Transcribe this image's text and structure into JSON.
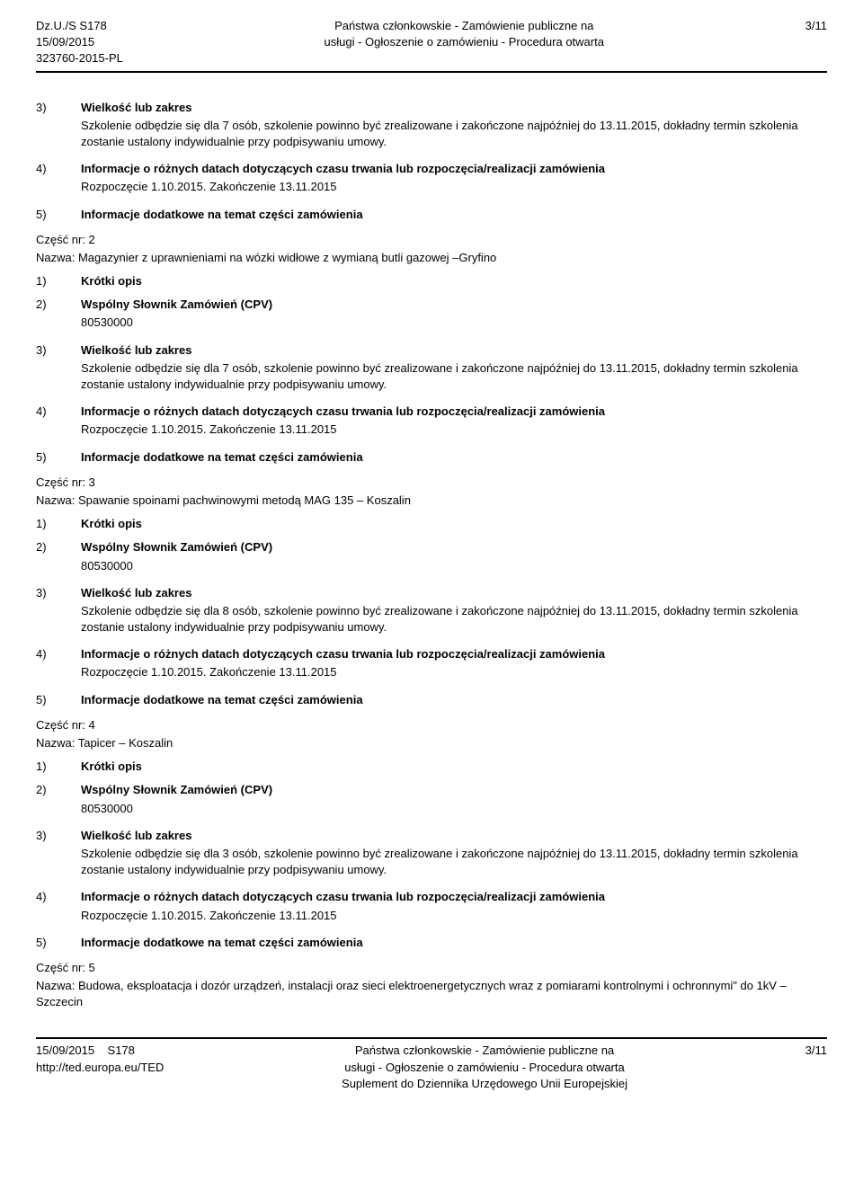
{
  "header": {
    "left_line1": "Dz.U./S S178",
    "left_line2": "15/09/2015",
    "left_line3": "323760-2015-PL",
    "center_line1": "Państwa członkowskie - Zamówienie publiczne na",
    "center_line2": "usługi - Ogłoszenie o zamówieniu - Procedura otwarta",
    "right": "3/11"
  },
  "sections": [
    {
      "rows": [
        {
          "num": "3)",
          "bold": true,
          "text": "Wielkość lub zakres"
        },
        {
          "num": "",
          "bold": false,
          "text": "Szkolenie odbędzie się dla 7 osób, szkolenie powinno być zrealizowane i zakończone najpóźniej do 13.11.2015, dokładny termin szkolenia zostanie ustalony indywidualnie przy podpisywaniu umowy."
        },
        {
          "num": "4)",
          "bold": true,
          "text": "Informacje o różnych datach dotyczących czasu trwania lub rozpoczęcia/realizacji zamówienia"
        },
        {
          "num": "",
          "bold": false,
          "text": "Rozpoczęcie 1.10.2015. Zakończenie 13.11.2015"
        },
        {
          "num": "5)",
          "bold": true,
          "text": "Informacje dodatkowe na temat części zamówienia"
        }
      ],
      "part": "Część nr: 2",
      "name": "Nazwa: Magazynier z uprawnieniami na wózki widłowe z wymianą butli gazowej –Gryfino"
    },
    {
      "rows": [
        {
          "num": "1)",
          "bold": true,
          "text": "Krótki opis"
        },
        {
          "num": "2)",
          "bold": true,
          "text": "Wspólny Słownik Zamówień (CPV)"
        },
        {
          "num": "",
          "bold": false,
          "text": "80530000"
        },
        {
          "num": "3)",
          "bold": true,
          "text": "Wielkość lub zakres"
        },
        {
          "num": "",
          "bold": false,
          "text": "Szkolenie odbędzie się dla 7 osób, szkolenie powinno być zrealizowane i zakończone najpóźniej do 13.11.2015, dokładny termin szkolenia zostanie ustalony indywidualnie przy podpisywaniu umowy."
        },
        {
          "num": "4)",
          "bold": true,
          "text": "Informacje o różnych datach dotyczących czasu trwania lub rozpoczęcia/realizacji zamówienia"
        },
        {
          "num": "",
          "bold": false,
          "text": "Rozpoczęcie 1.10.2015. Zakończenie 13.11.2015"
        },
        {
          "num": "5)",
          "bold": true,
          "text": "Informacje dodatkowe na temat części zamówienia"
        }
      ],
      "part": "Część nr: 3",
      "name": "Nazwa: Spawanie spoinami pachwinowymi metodą MAG 135 – Koszalin"
    },
    {
      "rows": [
        {
          "num": "1)",
          "bold": true,
          "text": "Krótki opis"
        },
        {
          "num": "2)",
          "bold": true,
          "text": "Wspólny Słownik Zamówień (CPV)"
        },
        {
          "num": "",
          "bold": false,
          "text": "80530000"
        },
        {
          "num": "3)",
          "bold": true,
          "text": "Wielkość lub zakres"
        },
        {
          "num": "",
          "bold": false,
          "text": "Szkolenie odbędzie się dla 8 osób, szkolenie powinno być zrealizowane i zakończone najpóźniej do 13.11.2015, dokładny termin szkolenia zostanie ustalony indywidualnie przy podpisywaniu umowy."
        },
        {
          "num": "4)",
          "bold": true,
          "text": "Informacje o różnych datach dotyczących czasu trwania lub rozpoczęcia/realizacji zamówienia"
        },
        {
          "num": "",
          "bold": false,
          "text": "Rozpoczęcie 1.10.2015. Zakończenie 13.11.2015"
        },
        {
          "num": "5)",
          "bold": true,
          "text": "Informacje dodatkowe na temat części zamówienia"
        }
      ],
      "part": "Część nr: 4",
      "name": "Nazwa: Tapicer – Koszalin"
    },
    {
      "rows": [
        {
          "num": "1)",
          "bold": true,
          "text": "Krótki opis"
        },
        {
          "num": "2)",
          "bold": true,
          "text": "Wspólny Słownik Zamówień (CPV)"
        },
        {
          "num": "",
          "bold": false,
          "text": "80530000"
        },
        {
          "num": "3)",
          "bold": true,
          "text": "Wielkość lub zakres"
        },
        {
          "num": "",
          "bold": false,
          "text": "Szkolenie odbędzie się dla 3 osób, szkolenie powinno być zrealizowane i zakończone najpóźniej do 13.11.2015, dokładny termin szkolenia zostanie ustalony indywidualnie przy podpisywaniu umowy."
        },
        {
          "num": "4)",
          "bold": true,
          "text": "Informacje o różnych datach dotyczących czasu trwania lub rozpoczęcia/realizacji zamówienia"
        },
        {
          "num": "",
          "bold": false,
          "text": "Rozpoczęcie 1.10.2015. Zakończenie 13.11.2015"
        },
        {
          "num": "5)",
          "bold": true,
          "text": "Informacje dodatkowe na temat części zamówienia"
        }
      ],
      "part": "Część nr: 5",
      "name": "Nazwa: Budowa, eksploatacja i dozór urządzeń, instalacji oraz sieci elektroenergetycznych wraz z pomiarami kontrolnymi i ochronnymi\" do 1kV – Szczecin"
    }
  ],
  "footer": {
    "left_line1": "15/09/2015",
    "left_line1b": "S178",
    "left_line2": "http://ted.europa.eu/TED",
    "center_line1": "Państwa członkowskie - Zamówienie publiczne na",
    "center_line2": "usługi - Ogłoszenie o zamówieniu - Procedura otwarta",
    "center_line3": "Suplement do Dziennika Urzędowego Unii Europejskiej",
    "right": "3/11"
  }
}
